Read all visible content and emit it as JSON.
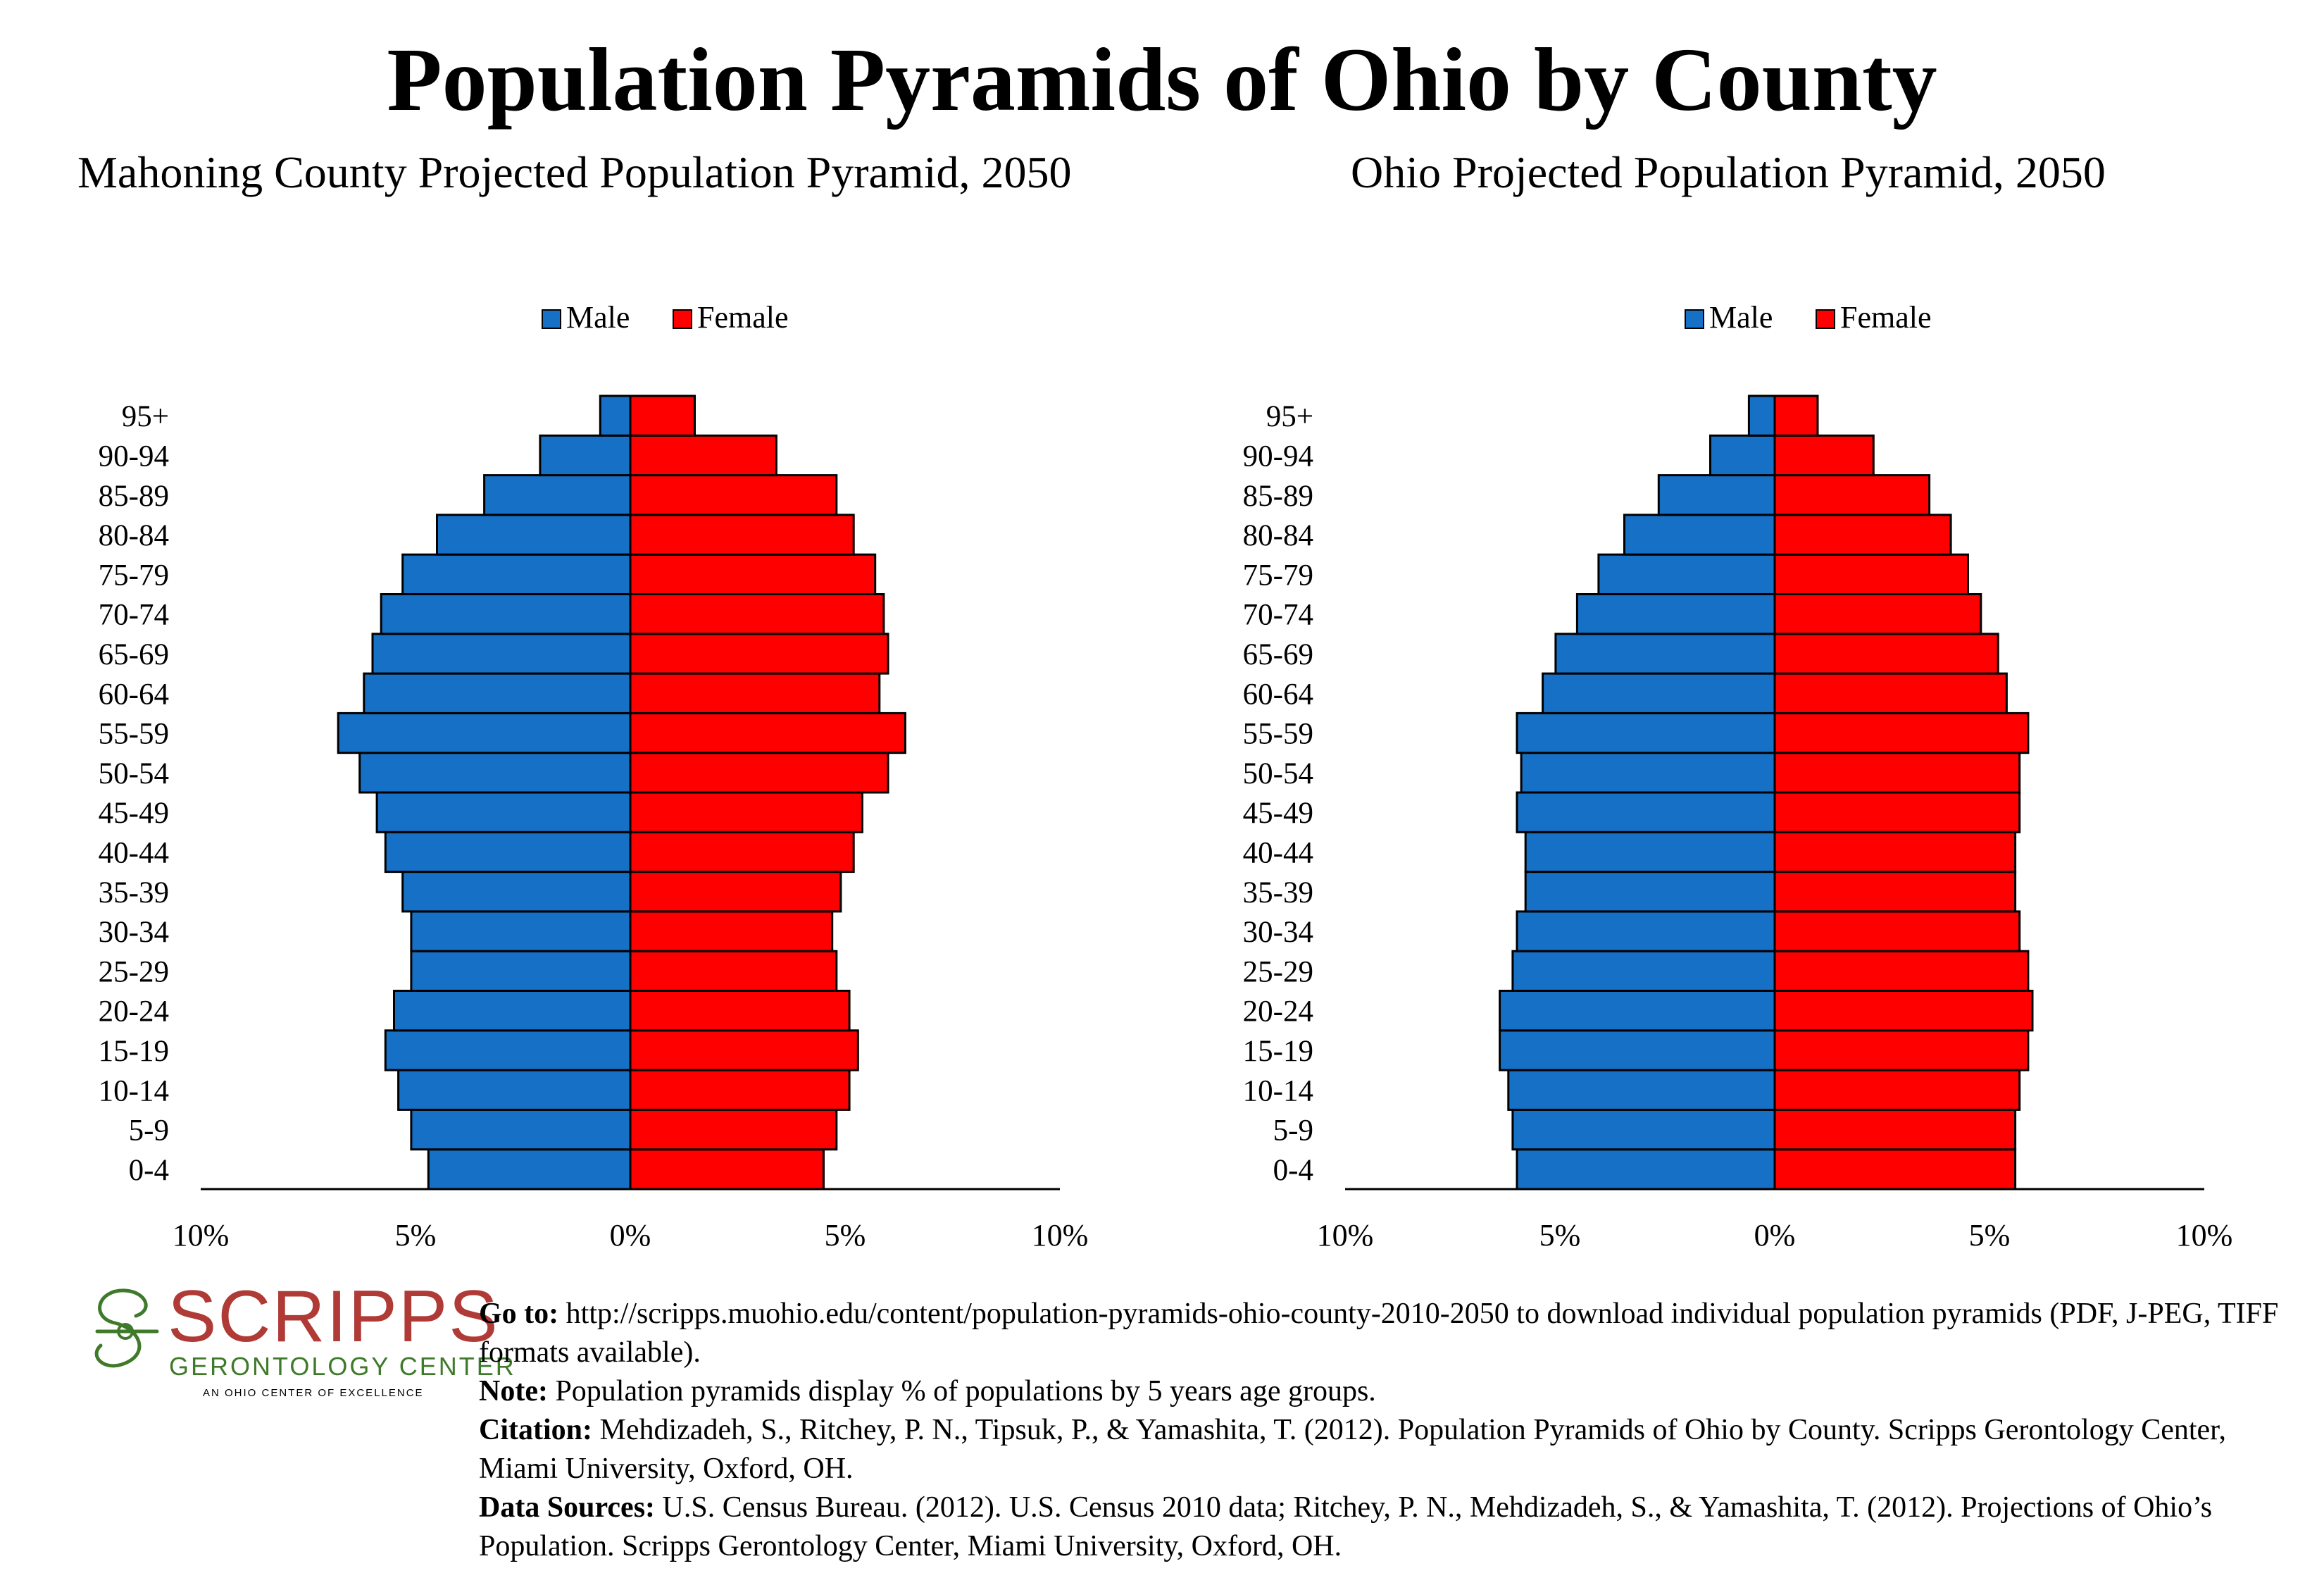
{
  "title": "Population Pyramids of Ohio by County",
  "legend": {
    "male": "Male",
    "female": "Female"
  },
  "colors": {
    "male": "#1670c6",
    "female": "#ff0000",
    "logo_red": "#b03a36",
    "logo_green": "#3f7a2a"
  },
  "chart_data": [
    {
      "type": "bar",
      "orientation": "horizontal-pyramid",
      "title": "Mahoning County Projected Population Pyramid, 2050",
      "categories": [
        "0-4",
        "5-9",
        "10-14",
        "15-19",
        "20-24",
        "25-29",
        "30-34",
        "35-39",
        "40-44",
        "45-49",
        "50-54",
        "55-59",
        "60-64",
        "65-69",
        "70-74",
        "75-79",
        "80-84",
        "85-89",
        "90-94",
        "95+"
      ],
      "series": [
        {
          "name": "Male",
          "values": [
            4.7,
            5.1,
            5.4,
            5.7,
            5.5,
            5.1,
            5.1,
            5.3,
            5.7,
            5.9,
            6.3,
            6.8,
            6.2,
            6.0,
            5.8,
            5.3,
            4.5,
            3.4,
            2.1,
            0.7
          ]
        },
        {
          "name": "Female",
          "values": [
            4.5,
            4.8,
            5.1,
            5.3,
            5.1,
            4.8,
            4.7,
            4.9,
            5.2,
            5.4,
            6.0,
            6.4,
            5.8,
            6.0,
            5.9,
            5.7,
            5.2,
            4.8,
            3.4,
            1.5
          ]
        }
      ],
      "xlim": [
        -10,
        10
      ],
      "xticks": [
        "10%",
        "5%",
        "0%",
        "5%",
        "10%"
      ],
      "legend_position": "top"
    },
    {
      "type": "bar",
      "orientation": "horizontal-pyramid",
      "title": "Ohio Projected Population Pyramid, 2050",
      "categories": [
        "0-4",
        "5-9",
        "10-14",
        "15-19",
        "20-24",
        "25-29",
        "30-34",
        "35-39",
        "40-44",
        "45-49",
        "50-54",
        "55-59",
        "60-64",
        "65-69",
        "70-74",
        "75-79",
        "80-84",
        "85-89",
        "90-94",
        "95+"
      ],
      "series": [
        {
          "name": "Male",
          "values": [
            6.0,
            6.1,
            6.2,
            6.4,
            6.4,
            6.1,
            6.0,
            5.8,
            5.8,
            6.0,
            5.9,
            6.0,
            5.4,
            5.1,
            4.6,
            4.1,
            3.5,
            2.7,
            1.5,
            0.6
          ]
        },
        {
          "name": "Female",
          "values": [
            5.6,
            5.6,
            5.7,
            5.9,
            6.0,
            5.9,
            5.7,
            5.6,
            5.6,
            5.7,
            5.7,
            5.9,
            5.4,
            5.2,
            4.8,
            4.5,
            4.1,
            3.6,
            2.3,
            1.0
          ]
        }
      ],
      "xlim": [
        -10,
        10
      ],
      "xticks": [
        "10%",
        "5%",
        "0%",
        "5%",
        "10%"
      ],
      "legend_position": "top"
    }
  ],
  "logo": {
    "name": "SCRIPPS",
    "subtitle": "GERONTOLOGY CENTER",
    "tagline": "AN OHIO CENTER OF EXCELLENCE"
  },
  "notes": {
    "goto_label": "Go to:",
    "goto_text": "http://scripps.muohio.edu/content/population-pyramids-ohio-county-2010-2050 to download individual population pyramids (PDF, J-PEG, TIFF formats available).",
    "note_label": "Note:",
    "note_text": "Population pyramids display % of populations by 5 years age groups.",
    "citation_label": "Citation:",
    "citation_text": "Mehdizadeh, S., Ritchey, P. N., Tipsuk, P., & Yamashita, T. (2012). Population Pyramids of Ohio by County. Scripps Gerontology Center, Miami University, Oxford, OH.",
    "sources_label": "Data Sources:",
    "sources_text": "U.S. Census Bureau. (2012). U.S. Census 2010 data; Ritchey, P. N., Mehdizadeh, S., & Yamashita, T. (2012). Projections of Ohio’s Population. Scripps Gerontology Center, Miami University, Oxford, OH."
  }
}
